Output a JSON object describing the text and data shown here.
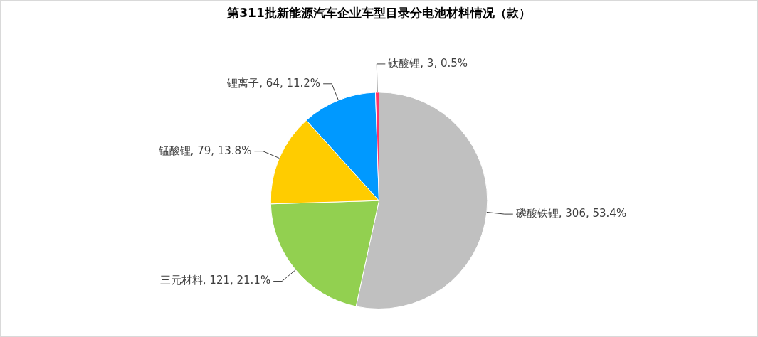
{
  "chart_data": {
    "type": "pie",
    "title": "第311批新能源汽车企业车型目录分电池材料情况（款）",
    "categories": [
      "磷酸铁锂",
      "三元材料",
      "锰酸锂",
      "锂离子",
      "钛酸锂"
    ],
    "values": [
      306,
      121,
      79,
      64,
      3
    ],
    "colors": [
      "#c0c0c0",
      "#92d050",
      "#ffcc00",
      "#0099ff",
      "#ff3366"
    ],
    "value_labels": [
      "306, 53.4%",
      "121, 21.1%",
      "79, 13.8%",
      "64, 11.2%",
      "3, 0.5%"
    ]
  }
}
